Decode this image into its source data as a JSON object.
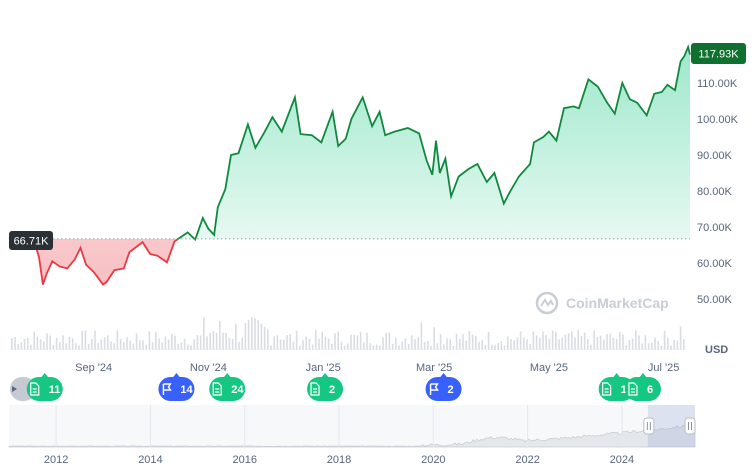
{
  "chart_data": {
    "type": "line",
    "currency_label": "USD",
    "watermark": "CoinMarketCap",
    "current_price_label": "117.93K",
    "reference_price_label": "66.71K",
    "reference_price": 66.71,
    "ylim": [
      50,
      120
    ],
    "y_ticks": [
      {
        "value": 110,
        "label": "110.00K"
      },
      {
        "value": 100,
        "label": "100.00K"
      },
      {
        "value": 90,
        "label": "90.00K"
      },
      {
        "value": 80,
        "label": "80.00K"
      },
      {
        "value": 70,
        "label": "70.00K"
      },
      {
        "value": 60,
        "label": "60.00K"
      },
      {
        "value": 50,
        "label": "50.00K"
      }
    ],
    "x_range": [
      "2024-07-18",
      "2025-07-15"
    ],
    "x_ticks": [
      {
        "date": "2024-09-01",
        "label": "Sep '24"
      },
      {
        "date": "2024-11-01",
        "label": "Nov '24"
      },
      {
        "date": "2025-01-01",
        "label": "Jan '25"
      },
      {
        "date": "2025-03-01",
        "label": "Mar '25"
      },
      {
        "date": "2025-05-01",
        "label": "May '25"
      },
      {
        "date": "2025-07-01",
        "label": "Jul '25"
      }
    ],
    "series": [
      {
        "points": [
          [
            "2024-07-18",
            66.7
          ],
          [
            "2024-07-22",
            67.5
          ],
          [
            "2024-07-28",
            68.0
          ],
          [
            "2024-08-01",
            65.0
          ],
          [
            "2024-08-03",
            61.5
          ],
          [
            "2024-08-05",
            54.0
          ],
          [
            "2024-08-07",
            57.0
          ],
          [
            "2024-08-10",
            60.5
          ],
          [
            "2024-08-14",
            59.0
          ],
          [
            "2024-08-18",
            58.5
          ],
          [
            "2024-08-22",
            61.0
          ],
          [
            "2024-08-25",
            64.2
          ],
          [
            "2024-08-28",
            59.5
          ],
          [
            "2024-09-01",
            57.5
          ],
          [
            "2024-09-06",
            54.0
          ],
          [
            "2024-09-08",
            54.8
          ],
          [
            "2024-09-12",
            58.0
          ],
          [
            "2024-09-17",
            58.5
          ],
          [
            "2024-09-20",
            63.0
          ],
          [
            "2024-09-27",
            65.8
          ],
          [
            "2024-10-01",
            62.5
          ],
          [
            "2024-10-05",
            62.0
          ],
          [
            "2024-10-10",
            60.2
          ],
          [
            "2024-10-14",
            66.0
          ],
          [
            "2024-10-21",
            68.5
          ],
          [
            "2024-10-25",
            66.5
          ],
          [
            "2024-10-29",
            72.5
          ],
          [
            "2024-11-01",
            69.5
          ],
          [
            "2024-11-04",
            67.8
          ],
          [
            "2024-11-06",
            75.5
          ],
          [
            "2024-11-10",
            80.5
          ],
          [
            "2024-11-13",
            90.0
          ],
          [
            "2024-11-17",
            90.5
          ],
          [
            "2024-11-22",
            98.5
          ],
          [
            "2024-11-26",
            92.0
          ],
          [
            "2024-12-01",
            96.5
          ],
          [
            "2024-12-05",
            100.5
          ],
          [
            "2024-12-10",
            96.5
          ],
          [
            "2024-12-17",
            106.0
          ],
          [
            "2024-12-20",
            95.8
          ],
          [
            "2024-12-26",
            95.5
          ],
          [
            "2024-12-31",
            93.5
          ],
          [
            "2025-01-06",
            102.0
          ],
          [
            "2025-01-09",
            92.5
          ],
          [
            "2025-01-13",
            94.5
          ],
          [
            "2025-01-16",
            100.0
          ],
          [
            "2025-01-20",
            104.0
          ],
          [
            "2025-01-22",
            106.0
          ],
          [
            "2025-01-27",
            98.0
          ],
          [
            "2025-01-31",
            102.0
          ],
          [
            "2025-02-03",
            95.5
          ],
          [
            "2025-02-08",
            96.5
          ],
          [
            "2025-02-15",
            97.5
          ],
          [
            "2025-02-21",
            96.0
          ],
          [
            "2025-02-25",
            88.5
          ],
          [
            "2025-02-28",
            84.5
          ],
          [
            "2025-03-02",
            94.0
          ],
          [
            "2025-03-04",
            85.0
          ],
          [
            "2025-03-07",
            89.0
          ],
          [
            "2025-03-10",
            78.5
          ],
          [
            "2025-03-14",
            84.0
          ],
          [
            "2025-03-19",
            86.0
          ],
          [
            "2025-03-24",
            87.5
          ],
          [
            "2025-03-29",
            82.5
          ],
          [
            "2025-04-02",
            85.0
          ],
          [
            "2025-04-07",
            76.5
          ],
          [
            "2025-04-10",
            79.5
          ],
          [
            "2025-04-15",
            84.0
          ],
          [
            "2025-04-21",
            87.5
          ],
          [
            "2025-04-23",
            93.5
          ],
          [
            "2025-04-28",
            95.0
          ],
          [
            "2025-05-01",
            96.5
          ],
          [
            "2025-05-05",
            94.0
          ],
          [
            "2025-05-09",
            103.0
          ],
          [
            "2025-05-14",
            103.5
          ],
          [
            "2025-05-17",
            103.0
          ],
          [
            "2025-05-22",
            111.0
          ],
          [
            "2025-05-27",
            109.0
          ],
          [
            "2025-06-01",
            104.5
          ],
          [
            "2025-06-05",
            101.5
          ],
          [
            "2025-06-09",
            110.0
          ],
          [
            "2025-06-13",
            105.5
          ],
          [
            "2025-06-17",
            104.5
          ],
          [
            "2025-06-22",
            101.0
          ],
          [
            "2025-06-26",
            107.0
          ],
          [
            "2025-06-30",
            107.5
          ],
          [
            "2025-07-03",
            109.5
          ],
          [
            "2025-07-07",
            108.0
          ],
          [
            "2025-07-10",
            116.0
          ],
          [
            "2025-07-12",
            117.5
          ],
          [
            "2025-07-14",
            120.0
          ],
          [
            "2025-07-15",
            117.9
          ]
        ]
      }
    ],
    "events": [
      {
        "kind": "doc",
        "count": "11",
        "date": "2024-08-06"
      },
      {
        "kind": "flag",
        "count": "14",
        "date": "2024-10-15"
      },
      {
        "kind": "doc",
        "count": "24",
        "date": "2024-11-11"
      },
      {
        "kind": "doc",
        "count": "2",
        "date": "2025-01-02"
      },
      {
        "kind": "flag",
        "count": "2",
        "date": "2025-03-06"
      },
      {
        "kind": "doc",
        "count": "10",
        "date": "2025-06-06"
      },
      {
        "kind": "doc",
        "count": "6",
        "date": "2025-06-20"
      }
    ],
    "overview": {
      "x_ticks": [
        "2012",
        "2014",
        "2016",
        "2018",
        "2020",
        "2022",
        "2024"
      ],
      "x_start_year": 2011.0,
      "x_end_year": 2025.55
    }
  }
}
